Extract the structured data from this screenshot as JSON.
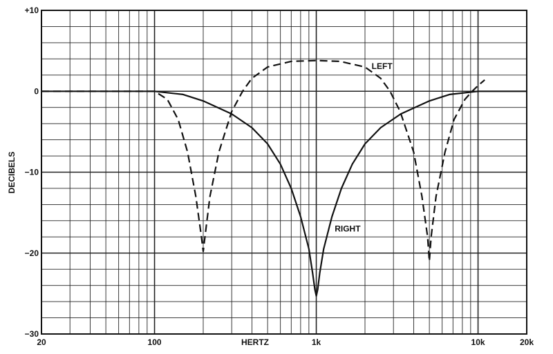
{
  "chart_data": {
    "type": "line",
    "title": "",
    "xlabel": "HERTZ",
    "ylabel": "DECIBELS",
    "x_scale": "log",
    "xlim": [
      20,
      20000
    ],
    "ylim": [
      -30,
      10
    ],
    "grid": true,
    "x_ticks": [
      20,
      100,
      1000,
      10000,
      20000
    ],
    "x_tick_labels": [
      "20",
      "100",
      "1k",
      "10k",
      "20k"
    ],
    "y_ticks": [
      10,
      0,
      -10,
      -20,
      -30
    ],
    "y_tick_labels": [
      "+10",
      "0",
      "−10",
      "−20",
      "−30"
    ],
    "series": [
      {
        "name": "LEFT",
        "line_style": "dashed",
        "color": "#111111",
        "points": [
          [
            20,
            0
          ],
          [
            80,
            0
          ],
          [
            100,
            0
          ],
          [
            120,
            -1
          ],
          [
            140,
            -3.5
          ],
          [
            160,
            -7.5
          ],
          [
            180,
            -13
          ],
          [
            195,
            -18
          ],
          [
            200,
            -19.8
          ],
          [
            205,
            -18
          ],
          [
            220,
            -13
          ],
          [
            250,
            -7.5
          ],
          [
            300,
            -2.5
          ],
          [
            350,
            0
          ],
          [
            400,
            1.6
          ],
          [
            500,
            3.0
          ],
          [
            700,
            3.7
          ],
          [
            1000,
            3.8
          ],
          [
            1400,
            3.7
          ],
          [
            2000,
            3.0
          ],
          [
            2500,
            1.6
          ],
          [
            2860,
            0
          ],
          [
            3300,
            -2.5
          ],
          [
            4000,
            -7.5
          ],
          [
            4500,
            -13
          ],
          [
            4880,
            -18
          ],
          [
            5000,
            -21
          ],
          [
            5130,
            -18
          ],
          [
            5500,
            -13
          ],
          [
            6250,
            -7.5
          ],
          [
            7100,
            -3.5
          ],
          [
            8300,
            -1
          ],
          [
            9200,
            0
          ],
          [
            10000,
            0.7
          ],
          [
            11000,
            1.4
          ]
        ]
      },
      {
        "name": "RIGHT",
        "line_style": "solid",
        "color": "#111111",
        "points": [
          [
            20,
            0
          ],
          [
            90,
            0
          ],
          [
            100,
            0
          ],
          [
            150,
            -0.4
          ],
          [
            200,
            -1.2
          ],
          [
            300,
            -2.8
          ],
          [
            400,
            -4.5
          ],
          [
            500,
            -6.5
          ],
          [
            600,
            -9
          ],
          [
            700,
            -12
          ],
          [
            800,
            -15.5
          ],
          [
            900,
            -19.5
          ],
          [
            950,
            -22.5
          ],
          [
            980,
            -24.5
          ],
          [
            1000,
            -25.3
          ],
          [
            1020,
            -24.5
          ],
          [
            1050,
            -22.5
          ],
          [
            1110,
            -19.5
          ],
          [
            1250,
            -15.5
          ],
          [
            1430,
            -12
          ],
          [
            1670,
            -9
          ],
          [
            2000,
            -6.5
          ],
          [
            2500,
            -4.5
          ],
          [
            3330,
            -2.8
          ],
          [
            5000,
            -1.2
          ],
          [
            6670,
            -0.4
          ],
          [
            10000,
            0
          ],
          [
            20000,
            0
          ]
        ]
      }
    ],
    "annotations": [
      {
        "text": "LEFT",
        "x": 2200,
        "y": 3.1
      },
      {
        "text": "RIGHT",
        "x": 1300,
        "y": -17
      }
    ]
  }
}
